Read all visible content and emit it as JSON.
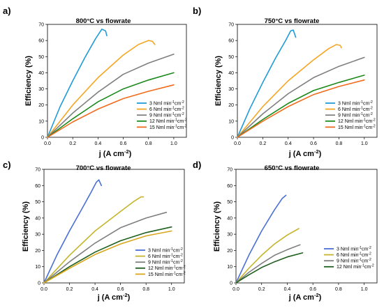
{
  "colors": {
    "blue": "#1f9bd7",
    "orange": "#f5a623",
    "gray": "#7f7f7f",
    "green": "#1a8a1a",
    "red_orange": "#f26a1b",
    "indigo": "#4a6fd6",
    "olive": "#c5b52a",
    "dark_green": "#1e5f1e",
    "gold": "#d9a51c"
  },
  "chart_data": [
    {
      "panel_label": "a)",
      "type": "line",
      "title": "800°C vs flowrate",
      "xlabel": "j (A cm",
      "xlabel_sup": "-2",
      "xlabel_close": ")",
      "ylabel": "Efficiency (%)",
      "xlim": [
        0,
        1.1
      ],
      "ylim": [
        0,
        70
      ],
      "xticks": [
        "0.0",
        "0.2",
        "0.4",
        "0.6",
        "0.8",
        "1.0"
      ],
      "xtick_values": [
        0,
        0.2,
        0.4,
        0.6,
        0.8,
        1.0
      ],
      "yticks": [
        "0",
        "10",
        "20",
        "30",
        "40",
        "50",
        "60",
        "70"
      ],
      "ytick_values": [
        0,
        10,
        20,
        30,
        40,
        50,
        60,
        70
      ],
      "legend_position": "bottom-right",
      "series": [
        {
          "name": "3 Nml min-1cm-2",
          "color": "#1f9bd7",
          "points": [
            [
              0,
              0
            ],
            [
              0.1,
              19
            ],
            [
              0.2,
              35
            ],
            [
              0.3,
              50
            ],
            [
              0.38,
              61
            ],
            [
              0.43,
              67
            ],
            [
              0.46,
              66
            ],
            [
              0.47,
              63
            ]
          ]
        },
        {
          "name": "6 Nml min-1cm-2",
          "color": "#f5a623",
          "points": [
            [
              0,
              0
            ],
            [
              0.2,
              20
            ],
            [
              0.4,
              37
            ],
            [
              0.6,
              51
            ],
            [
              0.72,
              57.5
            ],
            [
              0.8,
              60
            ],
            [
              0.83,
              59.5
            ],
            [
              0.85,
              57.5
            ]
          ]
        },
        {
          "name": "9 Nml min-1cm-2",
          "color": "#7f7f7f",
          "points": [
            [
              0,
              0
            ],
            [
              0.2,
              15
            ],
            [
              0.4,
              28
            ],
            [
              0.6,
              39
            ],
            [
              0.8,
              46
            ],
            [
              1.0,
              51.5
            ]
          ]
        },
        {
          "name": "12 Nml min-1cm-2",
          "color": "#1a8a1a",
          "points": [
            [
              0,
              0
            ],
            [
              0.2,
              11.5
            ],
            [
              0.4,
              22
            ],
            [
              0.6,
              30
            ],
            [
              0.8,
              35.5
            ],
            [
              1.0,
              40
            ]
          ]
        },
        {
          "name": "15 Nml min-1cm-2",
          "color": "#f26a1b",
          "points": [
            [
              0,
              0
            ],
            [
              0.2,
              9.5
            ],
            [
              0.4,
              17.5
            ],
            [
              0.6,
              24
            ],
            [
              0.8,
              28.5
            ],
            [
              1.0,
              32.5
            ]
          ]
        }
      ]
    },
    {
      "panel_label": "b)",
      "type": "line",
      "title": "750°C vs flowrate",
      "xlabel": "j (A cm",
      "xlabel_sup": "-2",
      "xlabel_close": ")",
      "ylabel": "Efficiency (%)",
      "xlim": [
        0,
        1.1
      ],
      "ylim": [
        0,
        70
      ],
      "xticks": [
        "0.0",
        "0.2",
        "0.4",
        "0.6",
        "0.8",
        "1.0"
      ],
      "xtick_values": [
        0,
        0.2,
        0.4,
        0.6,
        0.8,
        1.0
      ],
      "yticks": [
        "0",
        "10",
        "20",
        "30",
        "40",
        "50",
        "60",
        "70"
      ],
      "ytick_values": [
        0,
        10,
        20,
        30,
        40,
        50,
        60,
        70
      ],
      "legend_position": "bottom-right",
      "series": [
        {
          "name": "3 Nml min-1cm-2",
          "color": "#1f9bd7",
          "points": [
            [
              0,
              0
            ],
            [
              0.1,
              18
            ],
            [
              0.2,
              34
            ],
            [
              0.3,
              49
            ],
            [
              0.38,
              60
            ],
            [
              0.42,
              66
            ],
            [
              0.44,
              66.5
            ],
            [
              0.46,
              62
            ]
          ]
        },
        {
          "name": "6 Nml min-1cm-2",
          "color": "#f5a623",
          "points": [
            [
              0,
              0
            ],
            [
              0.2,
              19
            ],
            [
              0.4,
              35
            ],
            [
              0.6,
              48
            ],
            [
              0.72,
              55
            ],
            [
              0.78,
              57.5
            ],
            [
              0.81,
              57
            ],
            [
              0.82,
              55.5
            ]
          ]
        },
        {
          "name": "9 Nml min-1cm-2",
          "color": "#7f7f7f",
          "points": [
            [
              0,
              0
            ],
            [
              0.2,
              14.5
            ],
            [
              0.4,
              27
            ],
            [
              0.6,
              37
            ],
            [
              0.8,
              44
            ],
            [
              1.0,
              49.5
            ]
          ]
        },
        {
          "name": "12 Nml min-1cm-2",
          "color": "#1a8a1a",
          "points": [
            [
              0,
              0
            ],
            [
              0.2,
              11
            ],
            [
              0.4,
              21
            ],
            [
              0.6,
              29
            ],
            [
              0.8,
              34
            ],
            [
              1.0,
              38.5
            ]
          ]
        },
        {
          "name": "15 Nml min-1cm-2",
          "color": "#f26a1b",
          "points": [
            [
              0,
              0
            ],
            [
              0.2,
              10
            ],
            [
              0.4,
              19
            ],
            [
              0.6,
              26.5
            ],
            [
              0.8,
              31.5
            ],
            [
              1.0,
              35.5
            ]
          ]
        }
      ]
    },
    {
      "panel_label": "c)",
      "type": "line",
      "title": "700°C vs flowrate",
      "xlabel": "j (A cm",
      "xlabel_sup": "-2",
      "xlabel_close": ")",
      "ylabel": "Efficiency (%)",
      "xlim": [
        0,
        1.1
      ],
      "ylim": [
        0,
        70
      ],
      "xticks": [
        "0.0",
        "0.2",
        "0.4",
        "0.6",
        "0.8",
        "1.0"
      ],
      "xtick_values": [
        0,
        0.2,
        0.4,
        0.6,
        0.8,
        1.0
      ],
      "yticks": [
        "0",
        "10",
        "20",
        "30",
        "40",
        "50",
        "60",
        "70"
      ],
      "ytick_values": [
        0,
        10,
        20,
        30,
        40,
        50,
        60,
        70
      ],
      "legend_position": "bottom-right",
      "series": [
        {
          "name": "3 Nml min-1cm-2",
          "color": "#4a6fd6",
          "points": [
            [
              0,
              0
            ],
            [
              0.1,
              17
            ],
            [
              0.2,
              32
            ],
            [
              0.3,
              46
            ],
            [
              0.37,
              56
            ],
            [
              0.41,
              62
            ],
            [
              0.43,
              63.5
            ],
            [
              0.45,
              60
            ]
          ]
        },
        {
          "name": "6 Nml min-1cm-2",
          "color": "#c5b52a",
          "points": [
            [
              0,
              0
            ],
            [
              0.2,
              17
            ],
            [
              0.4,
              32
            ],
            [
              0.6,
              44
            ],
            [
              0.7,
              50
            ],
            [
              0.76,
              53
            ],
            [
              0.78,
              53
            ]
          ]
        },
        {
          "name": "9 Nml min-1cm-2",
          "color": "#7f7f7f",
          "points": [
            [
              0,
              0
            ],
            [
              0.2,
              13
            ],
            [
              0.4,
              24.5
            ],
            [
              0.6,
              34
            ],
            [
              0.8,
              40
            ],
            [
              0.96,
              43.5
            ]
          ]
        },
        {
          "name": "12 Nml min-1cm-2",
          "color": "#1e5f1e",
          "points": [
            [
              0,
              0
            ],
            [
              0.2,
              10
            ],
            [
              0.4,
              19
            ],
            [
              0.6,
              26
            ],
            [
              0.8,
              31
            ],
            [
              1.0,
              34.5
            ]
          ]
        },
        {
          "name": "15 Nml min-1cm-2",
          "color": "#d9a51c",
          "points": [
            [
              0,
              0
            ],
            [
              0.2,
              9
            ],
            [
              0.4,
              17.5
            ],
            [
              0.6,
              24
            ],
            [
              0.8,
              29
            ],
            [
              1.0,
              32
            ]
          ]
        }
      ]
    },
    {
      "panel_label": "d)",
      "type": "line",
      "title": "650°C vs flowrate",
      "xlabel": "j (A cm",
      "xlabel_sup": "-2",
      "xlabel_close": ")",
      "ylabel": "Efficiency (%)",
      "xlim": [
        0,
        1.1
      ],
      "ylim": [
        0,
        70
      ],
      "xticks": [
        "0.0",
        "0.2",
        "0.4",
        "0.6",
        "0.8",
        "1.0"
      ],
      "xtick_values": [
        0,
        0.2,
        0.4,
        0.6,
        0.8,
        1.0
      ],
      "yticks": [
        "0",
        "10",
        "20",
        "30",
        "40",
        "50",
        "60",
        "70"
      ],
      "ytick_values": [
        0,
        10,
        20,
        30,
        40,
        50,
        60,
        70
      ],
      "legend_position": "bottom-right",
      "series": [
        {
          "name": "3 Nml min-1cm-2",
          "color": "#4a6fd6",
          "points": [
            [
              0,
              0
            ],
            [
              0.1,
              17
            ],
            [
              0.2,
              32
            ],
            [
              0.3,
              45
            ],
            [
              0.36,
              52
            ],
            [
              0.39,
              54
            ]
          ]
        },
        {
          "name": "6 Nml min-1cm-2",
          "color": "#c5b52a",
          "points": [
            [
              0,
              0
            ],
            [
              0.1,
              9
            ],
            [
              0.2,
              17
            ],
            [
              0.3,
              24
            ],
            [
              0.4,
              29.5
            ],
            [
              0.49,
              33.5
            ]
          ]
        },
        {
          "name": "9 Nml min-1cm-2",
          "color": "#7f7f7f",
          "points": [
            [
              0,
              0
            ],
            [
              0.1,
              6.5
            ],
            [
              0.2,
              12
            ],
            [
              0.3,
              17
            ],
            [
              0.4,
              20.5
            ],
            [
              0.5,
              23.5
            ]
          ]
        },
        {
          "name": "12 Nml min-1cm-2",
          "color": "#1e5f1e",
          "points": [
            [
              0,
              0
            ],
            [
              0.1,
              5
            ],
            [
              0.2,
              9.5
            ],
            [
              0.3,
              13
            ],
            [
              0.4,
              16
            ],
            [
              0.52,
              18.5
            ]
          ]
        }
      ]
    }
  ]
}
